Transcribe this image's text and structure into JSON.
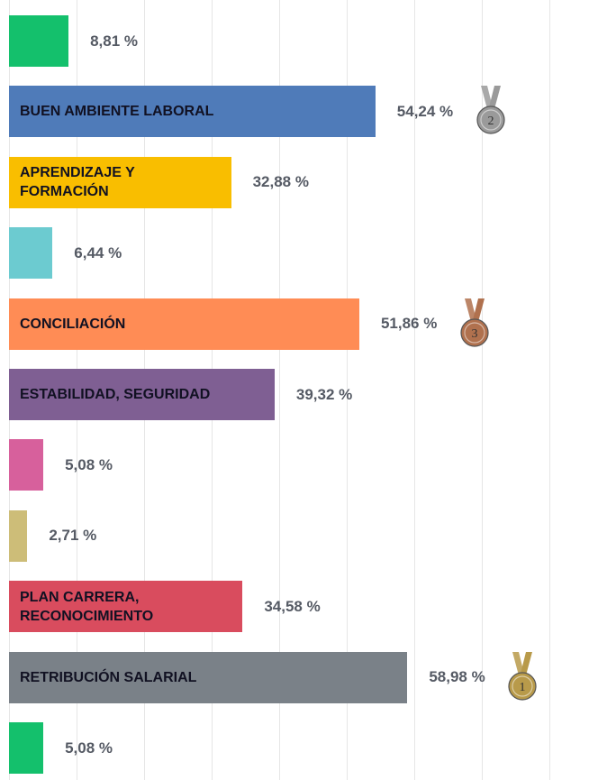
{
  "chart_data": {
    "type": "bar",
    "orientation": "horizontal",
    "categories": [
      null,
      "BUEN AMBIENTE LABORAL",
      "APRENDIZAJE Y\n FORMACIÓN",
      null,
      "CONCILIACIÓN",
      "ESTABILIDAD, SEGURIDAD",
      null,
      null,
      "PLAN CARRERA,\nRECONOCIMIENTO",
      "RETRIBUCIÓN SALARIAL",
      null
    ],
    "values": [
      8.81,
      54.24,
      32.88,
      6.44,
      51.86,
      39.32,
      5.08,
      2.71,
      34.58,
      58.98,
      5.08
    ],
    "value_labels": [
      "8,81 %",
      "54,24 %",
      "32,88 %",
      "6,44 %",
      "51,86 %",
      "39,32 %",
      "5,08 %",
      "2,71 %",
      "34,58 %",
      "58,98 %",
      "5,08 %"
    ],
    "colors": [
      "#14c06c",
      "#4f7bb9",
      "#f9be00",
      "#6ccbd0",
      "#ff8c55",
      "#7f5f93",
      "#d7609c",
      "#cdbd78",
      "#d94c5e",
      "#7a8188",
      "#14c06c"
    ],
    "medals": [
      null,
      "2",
      null,
      null,
      "3",
      null,
      null,
      null,
      null,
      "1",
      null
    ],
    "medal_colors": {
      "1": "#b89a4a",
      "2": "#9a9a9a",
      "3": "#b0714e"
    },
    "xlim": [
      0,
      88
    ],
    "xticks": [
      0,
      10,
      20,
      30,
      40,
      50,
      60,
      70,
      80
    ],
    "grid": true
  }
}
